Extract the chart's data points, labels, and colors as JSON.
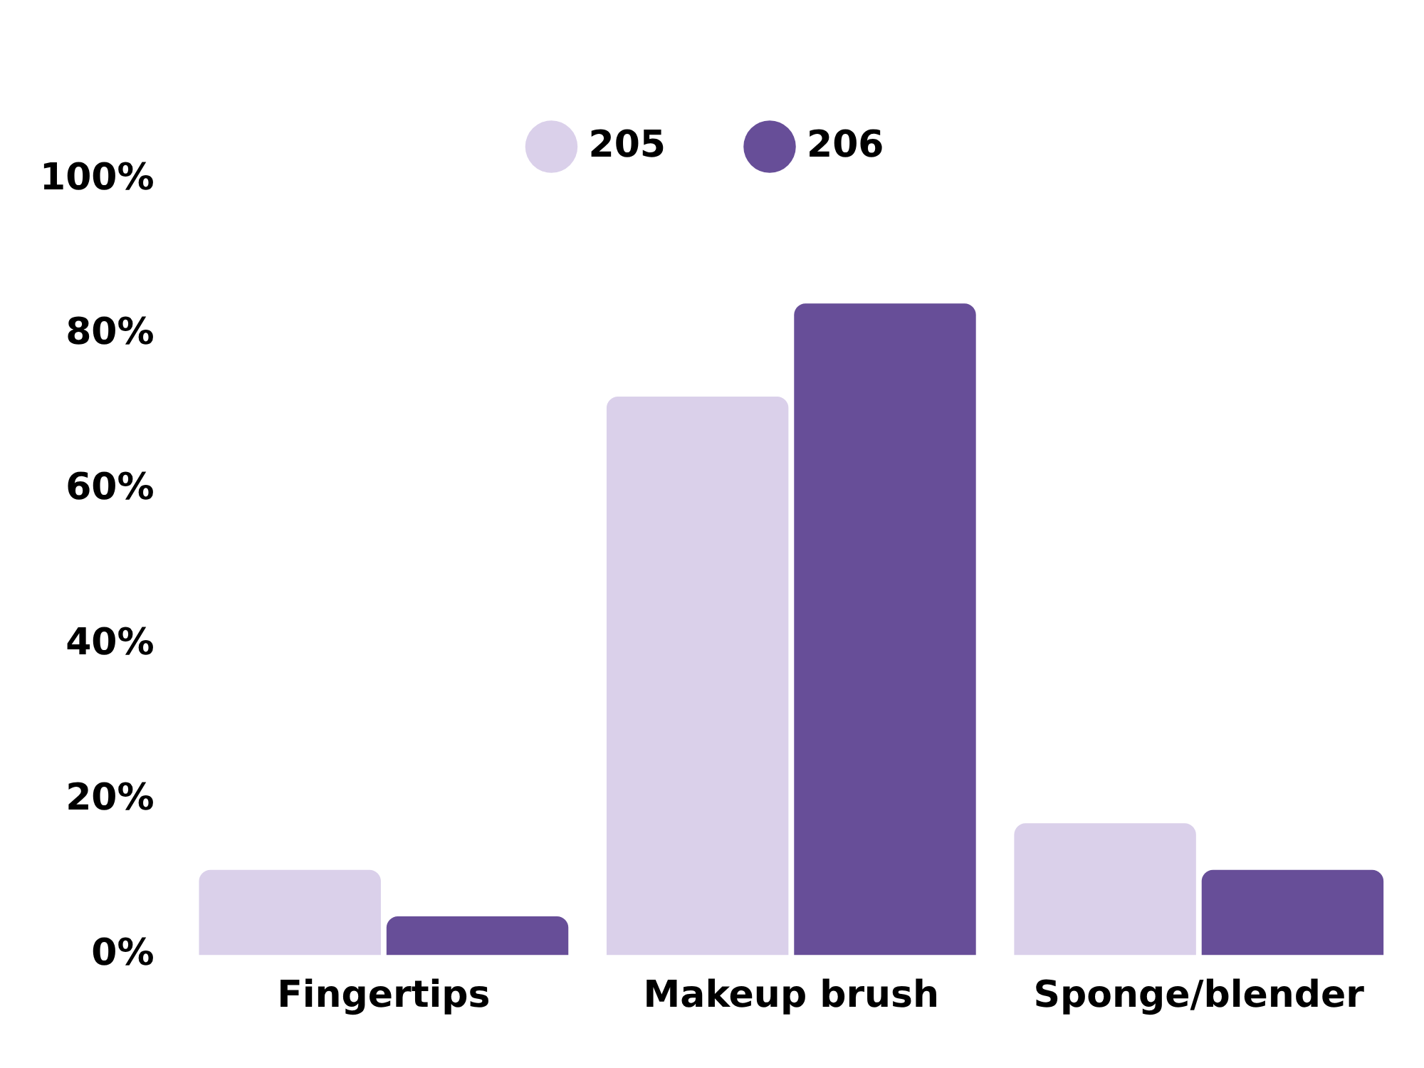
{
  "chart_data": {
    "type": "bar",
    "categories": [
      "Fingertips",
      "Makeup brush",
      "Sponge/blender"
    ],
    "series": [
      {
        "name": "205",
        "color": "#dad0ea",
        "values": [
          11,
          72,
          17
        ]
      },
      {
        "name": "206",
        "color": "#674e98",
        "values": [
          5,
          84,
          11
        ]
      }
    ],
    "ylim": [
      0,
      100
    ],
    "yticks": [
      {
        "value": 0,
        "label": "0%"
      },
      {
        "value": 20,
        "label": "20%"
      },
      {
        "value": 40,
        "label": "40%"
      },
      {
        "value": 60,
        "label": "60%"
      },
      {
        "value": 80,
        "label": "80%"
      },
      {
        "value": 100,
        "label": "100%"
      }
    ],
    "grid": false,
    "legend": "top"
  }
}
